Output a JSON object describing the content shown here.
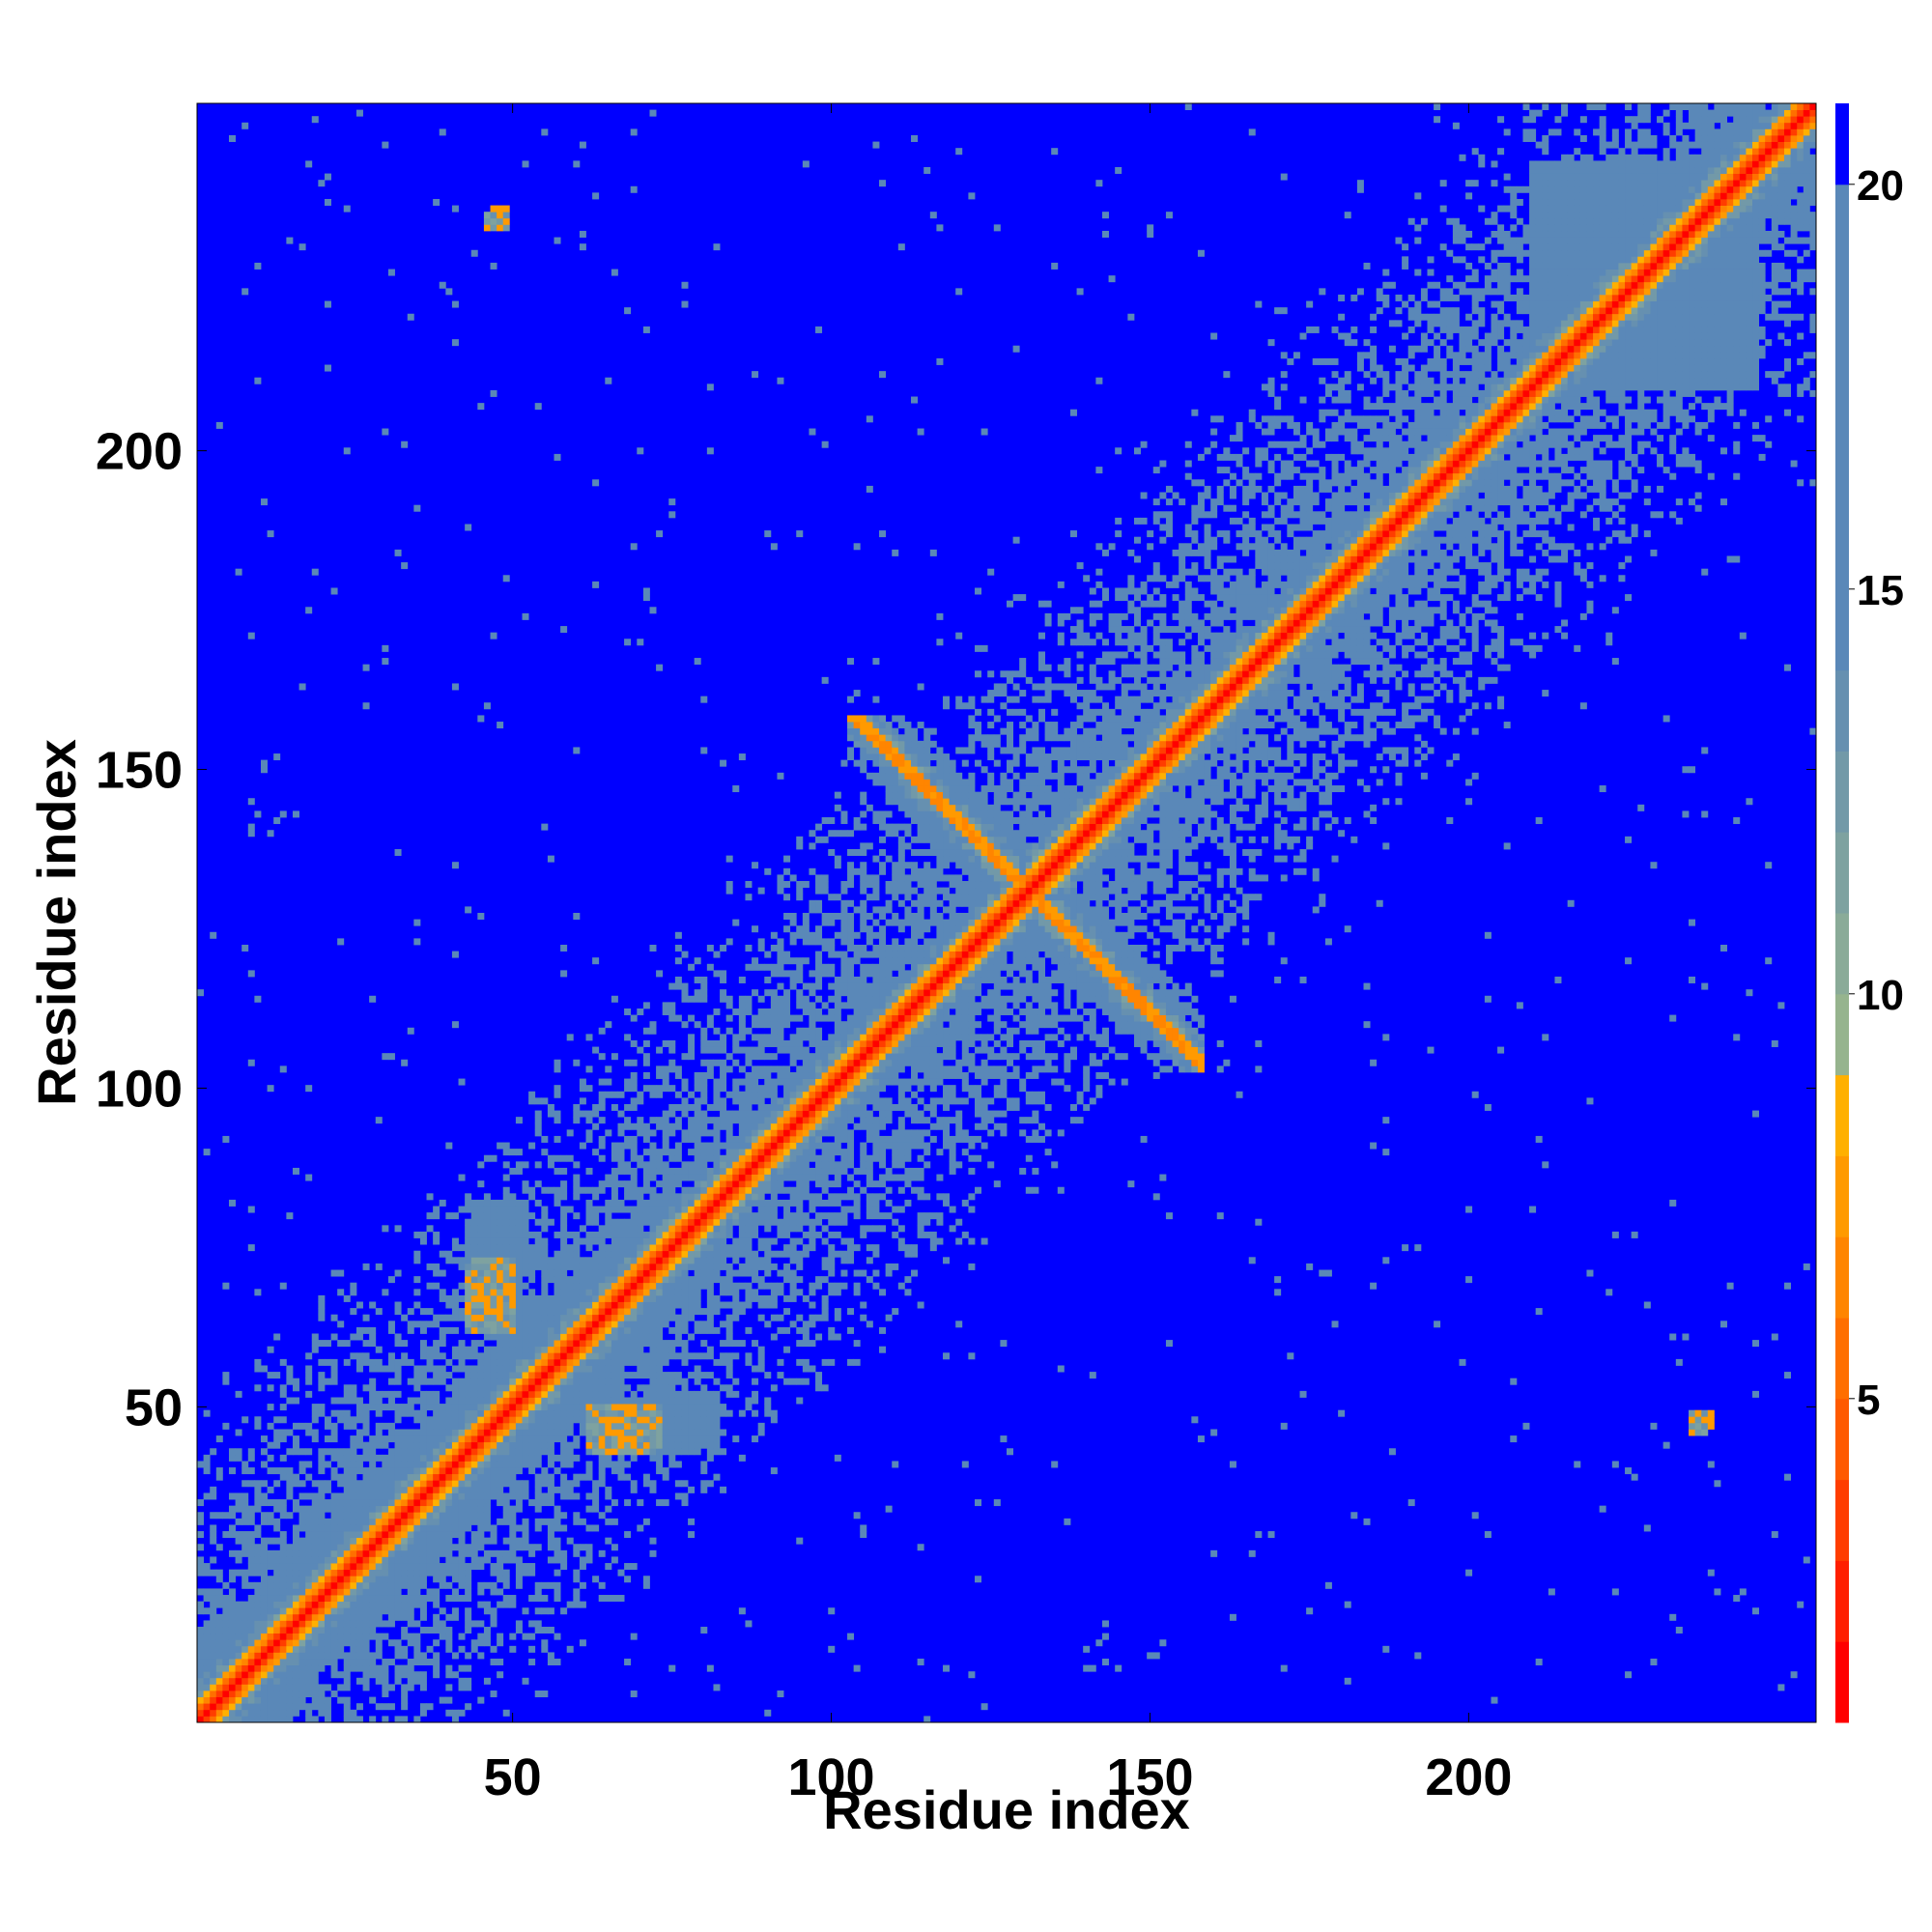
{
  "chart_data": {
    "type": "heatmap",
    "title": "",
    "xlabel": "Residue index",
    "ylabel": "Residue index",
    "n_residues": 254,
    "xlim": [
      1,
      254
    ],
    "ylim": [
      1,
      254
    ],
    "x_ticks": [
      50,
      100,
      150,
      200
    ],
    "y_ticks": [
      50,
      100,
      150,
      200
    ],
    "colorbar": {
      "range": [
        1,
        21
      ],
      "ticks": [
        5,
        10,
        15,
        20
      ],
      "colors": [
        "#ff0000",
        "#ff1f00",
        "#ff3d00",
        "#ff5a00",
        "#ff6f00",
        "#ff8500",
        "#ff9a00",
        "#ffb000",
        "#96b48e",
        "#8aab98",
        "#7ea2a0",
        "#7299a8",
        "#6690b0",
        "#5a88b8",
        "#0000ff"
      ],
      "levels": [
        1,
        2,
        3,
        4,
        5,
        6,
        7,
        8,
        9,
        10,
        11,
        12,
        13,
        14,
        20,
        21
      ]
    },
    "description_features": {
      "diagonal_band": {
        "from": 1,
        "to": 254
      },
      "antidiagonal_segment": {
        "x_range": [
          103,
          158
        ],
        "y_range": [
          103,
          158
        ]
      },
      "sheet_contacts": [
        {
          "x_range": [
            44,
            50
          ],
          "y_range": [
            62,
            73
          ]
        },
        {
          "x_range": [
            63,
            72
          ],
          "y_range": [
            43,
            50
          ]
        },
        {
          "x_range": [
            236,
            238
          ],
          "y_range": [
            47,
            49
          ]
        },
        {
          "x_range": [
            46,
            49
          ],
          "y_range": [
            235,
            237
          ]
        }
      ],
      "blocks": [
        {
          "x_range": [
            43,
            52
          ],
          "y_range": [
            74,
            82
          ]
        },
        {
          "x_range": [
            72,
            82
          ],
          "y_range": [
            43,
            52
          ]
        },
        {
          "x_range": [
            210,
            245
          ],
          "y_range": [
            210,
            245
          ]
        }
      ]
    }
  }
}
